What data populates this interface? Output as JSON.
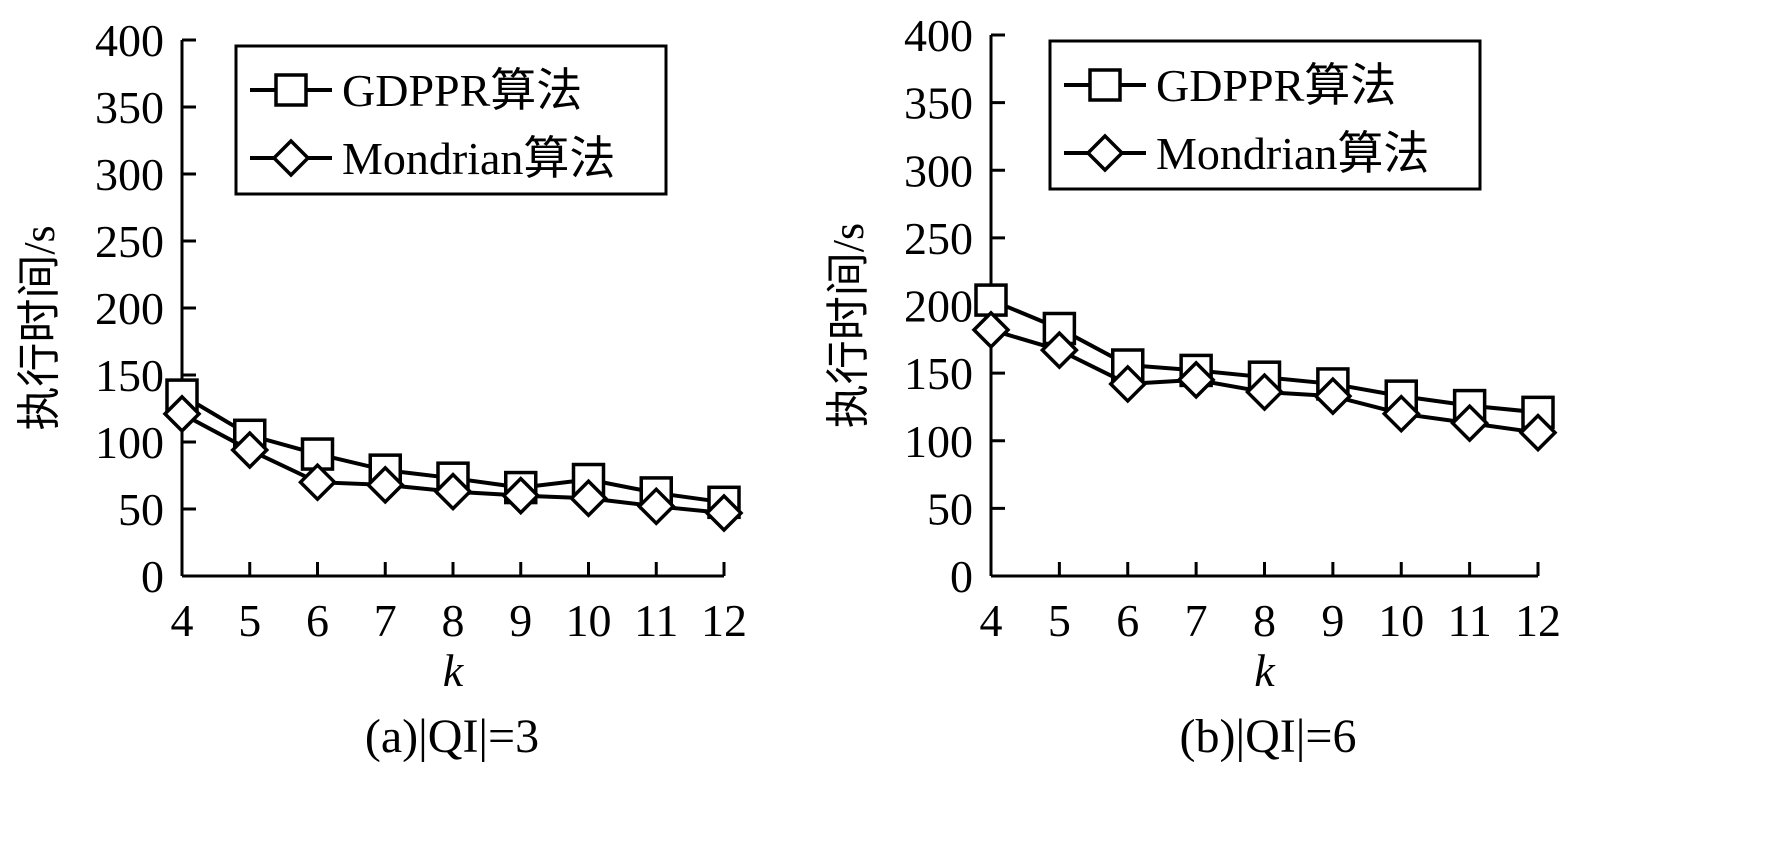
{
  "chart_data": [
    {
      "type": "line",
      "caption": "(a)|QI|=3",
      "xlabel": "k",
      "ylabel": "执行时间/s",
      "x": [
        4,
        5,
        6,
        7,
        8,
        9,
        10,
        11,
        12
      ],
      "xticks": [
        "4",
        "5",
        "6",
        "7",
        "8",
        "9",
        "10",
        "11",
        "12"
      ],
      "yticks": [
        "0",
        "50",
        "100",
        "150",
        "200",
        "250",
        "300",
        "350",
        "400"
      ],
      "ylim": [
        0,
        400
      ],
      "grid": false,
      "legend_position": "top-right",
      "series": [
        {
          "name": "GDPPR算法",
          "marker": "square",
          "values": [
            135,
            105,
            91,
            79,
            73,
            66,
            72,
            62,
            55
          ]
        },
        {
          "name": "Mondrian算法",
          "marker": "diamond",
          "values": [
            121,
            94,
            70,
            68,
            63,
            60,
            58,
            52,
            47
          ]
        }
      ]
    },
    {
      "type": "line",
      "caption": "(b)|QI|=6",
      "xlabel": "k",
      "ylabel": "执行时间/s",
      "x": [
        4,
        5,
        6,
        7,
        8,
        9,
        10,
        11,
        12
      ],
      "xticks": [
        "4",
        "5",
        "6",
        "7",
        "8",
        "9",
        "10",
        "11",
        "12"
      ],
      "yticks": [
        "0",
        "50",
        "100",
        "150",
        "200",
        "250",
        "300",
        "350",
        "400"
      ],
      "ylim": [
        0,
        400
      ],
      "grid": false,
      "legend_position": "top-right",
      "series": [
        {
          "name": "GDPPR算法",
          "marker": "square",
          "values": [
            204,
            183,
            156,
            152,
            147,
            142,
            133,
            126,
            121
          ]
        },
        {
          "name": "Mondrian算法",
          "marker": "diamond",
          "values": [
            182,
            167,
            142,
            145,
            136,
            133,
            120,
            113,
            106
          ]
        }
      ]
    }
  ]
}
